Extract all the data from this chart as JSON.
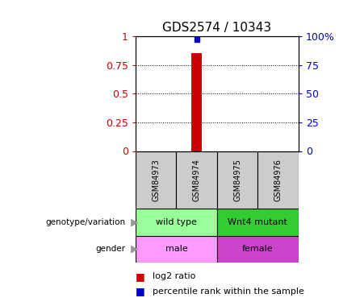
{
  "title": "GDS2574 / 10343",
  "samples": [
    "GSM84973",
    "GSM84974",
    "GSM84975",
    "GSM84976"
  ],
  "log2_ratio_sample": "GSM84974",
  "log2_ratio_value": 0.85,
  "percentile_rank_sample": "GSM84974",
  "percentile_rank_value": 0.97,
  "left_yticks": [
    0,
    0.25,
    0.5,
    0.75,
    1
  ],
  "right_yticks": [
    0,
    25,
    50,
    75,
    100
  ],
  "left_ylabel_color": "#cc0000",
  "right_ylabel_color": "#0000cc",
  "bar_color": "#cc0000",
  "point_color": "#0000cc",
  "genotype_labels": [
    {
      "text": "wild type",
      "samples": [
        "GSM84973",
        "GSM84974"
      ],
      "color": "#99ff99"
    },
    {
      "text": "Wnt4 mutant",
      "samples": [
        "GSM84975",
        "GSM84976"
      ],
      "color": "#33cc33"
    }
  ],
  "gender_labels": [
    {
      "text": "male",
      "samples": [
        "GSM84973",
        "GSM84974"
      ],
      "color": "#ff99ff"
    },
    {
      "text": "female",
      "samples": [
        "GSM84975",
        "GSM84976"
      ],
      "color": "#cc44cc"
    }
  ],
  "legend_log2_color": "#cc0000",
  "legend_pct_color": "#0000cc",
  "background_color": "#ffffff",
  "sample_box_color": "#cccccc",
  "arrow_color": "#999999"
}
